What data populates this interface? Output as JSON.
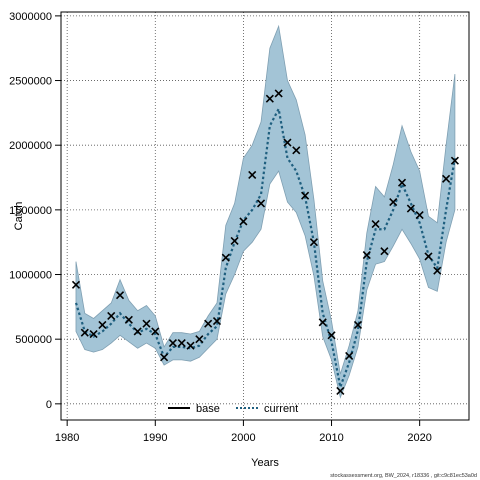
{
  "chart_data": {
    "type": "line",
    "title": "",
    "xlabel": "Years",
    "ylabel": "Catch",
    "xlim": [
      1979.3,
      2025.6
    ],
    "ylim": [
      -125000,
      3030000
    ],
    "grid": true,
    "legend_position": "bottom-center",
    "x_ticks": [
      1980,
      1990,
      2000,
      2010,
      2020
    ],
    "y_ticks": [
      0,
      500000,
      1000000,
      1500000,
      2000000,
      2500000,
      3000000
    ],
    "x_tick_labels": [
      "1980",
      "1990",
      "2000",
      "2010",
      "2020"
    ],
    "y_tick_labels": [
      "0",
      "500000",
      "1000000",
      "1500000",
      "2000000",
      "2500000",
      "3000000"
    ],
    "years": [
      1981,
      1982,
      1983,
      1984,
      1985,
      1986,
      1987,
      1988,
      1989,
      1990,
      1991,
      1992,
      1993,
      1994,
      1995,
      1996,
      1997,
      1998,
      1999,
      2000,
      2001,
      2002,
      2003,
      2004,
      2005,
      2006,
      2007,
      2008,
      2009,
      2010,
      2011,
      2012,
      2013,
      2014,
      2015,
      2016,
      2017,
      2018,
      2019,
      2020,
      2021,
      2022,
      2023,
      2024
    ],
    "series": [
      {
        "name": "base",
        "color": "#000000",
        "style": "solid",
        "values": []
      },
      {
        "name": "current",
        "color": "#1f5f7f",
        "style": "dotted",
        "values": [
          780000,
          560000,
          520000,
          560000,
          620000,
          700000,
          620000,
          550000,
          580000,
          540000,
          360000,
          440000,
          440000,
          430000,
          450000,
          540000,
          600000,
          1050000,
          1250000,
          1420000,
          1500000,
          1620000,
          2150000,
          2280000,
          1900000,
          1800000,
          1600000,
          1250000,
          700000,
          480000,
          130000,
          320000,
          570000,
          1100000,
          1350000,
          1350000,
          1500000,
          1700000,
          1550000,
          1400000,
          1150000,
          1050000,
          1500000,
          1900000
        ]
      }
    ],
    "uncertainty_band": {
      "color": "#a3c4d6",
      "lower": [
        560000,
        420000,
        400000,
        420000,
        470000,
        530000,
        480000,
        430000,
        470000,
        430000,
        300000,
        340000,
        340000,
        330000,
        360000,
        430000,
        500000,
        850000,
        1000000,
        1180000,
        1250000,
        1350000,
        1700000,
        1800000,
        1560000,
        1480000,
        1300000,
        990000,
        520000,
        340000,
        50000,
        220000,
        440000,
        880000,
        1080000,
        1100000,
        1220000,
        1350000,
        1240000,
        1120000,
        900000,
        870000,
        1250000,
        1500000
      ],
      "upper": [
        1100000,
        700000,
        660000,
        720000,
        780000,
        960000,
        800000,
        720000,
        760000,
        680000,
        440000,
        550000,
        550000,
        540000,
        560000,
        680000,
        780000,
        1380000,
        1550000,
        1900000,
        2000000,
        2180000,
        2750000,
        2920000,
        2500000,
        2350000,
        2080000,
        1580000,
        950000,
        640000,
        230000,
        450000,
        720000,
        1320000,
        1680000,
        1600000,
        1850000,
        2150000,
        1950000,
        1800000,
        1450000,
        1400000,
        2000000,
        2550000
      ]
    },
    "observed": {
      "marker": "x",
      "values": [
        920000,
        550000,
        540000,
        610000,
        680000,
        840000,
        650000,
        560000,
        620000,
        560000,
        360000,
        470000,
        470000,
        450000,
        500000,
        620000,
        640000,
        1130000,
        1260000,
        1410000,
        1770000,
        1550000,
        2360000,
        2400000,
        2020000,
        1960000,
        1610000,
        1250000,
        630000,
        530000,
        100000,
        370000,
        610000,
        1150000,
        1390000,
        1180000,
        1560000,
        1710000,
        1510000,
        1460000,
        1140000,
        1030000,
        1740000,
        1880000
      ]
    },
    "footer_note": "stockassessment.org, BW_2024, r18336 , git:c9c81ec53a0d"
  }
}
